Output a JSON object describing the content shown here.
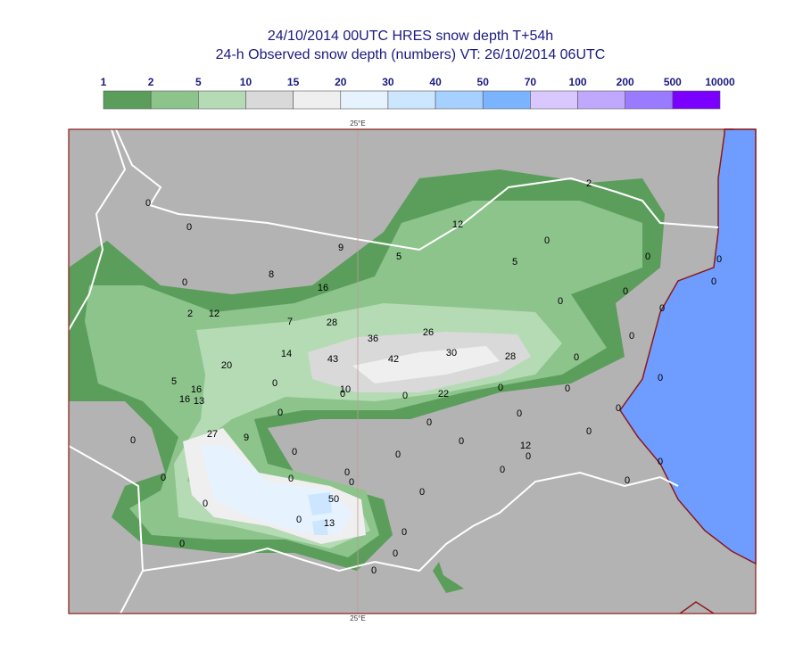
{
  "header": {
    "title_line1": "24/10/2014 00UTC HRES snow depth T+54h",
    "title_line2": "24-h Observed snow depth (numbers) VT: 26/10/2014 06UTC"
  },
  "legend": {
    "labels": [
      "1",
      "2",
      "5",
      "10",
      "15",
      "20",
      "30",
      "40",
      "50",
      "70",
      "100",
      "200",
      "500",
      "10000"
    ],
    "colors": [
      "#5b9e5b",
      "#8cc48c",
      "#b5dbb5",
      "#d9d9d9",
      "#efefef",
      "#e6f3ff",
      "#cde6ff",
      "#a6d0ff",
      "#7ab4ff",
      "#d9c8ff",
      "#c0a8ff",
      "#9a7aff",
      "#7a00ff"
    ]
  },
  "meridian_top": "25°E",
  "meridian_bottom": "25°E",
  "observations": [
    0,
    0,
    9,
    2,
    12,
    0,
    5,
    5,
    0,
    8,
    0,
    16,
    0,
    0,
    0,
    0,
    0,
    2,
    12,
    7,
    28,
    36,
    26,
    0,
    14,
    43,
    42,
    30,
    28,
    0,
    20,
    0,
    5,
    16,
    0,
    10,
    0,
    0,
    22,
    0,
    0,
    16,
    13,
    0,
    0,
    0,
    0,
    0,
    27,
    9,
    0,
    0,
    12,
    0,
    0,
    0,
    0,
    0,
    0,
    0,
    0,
    0,
    0,
    0,
    50,
    0,
    0,
    13,
    0,
    0,
    0,
    0
  ]
}
